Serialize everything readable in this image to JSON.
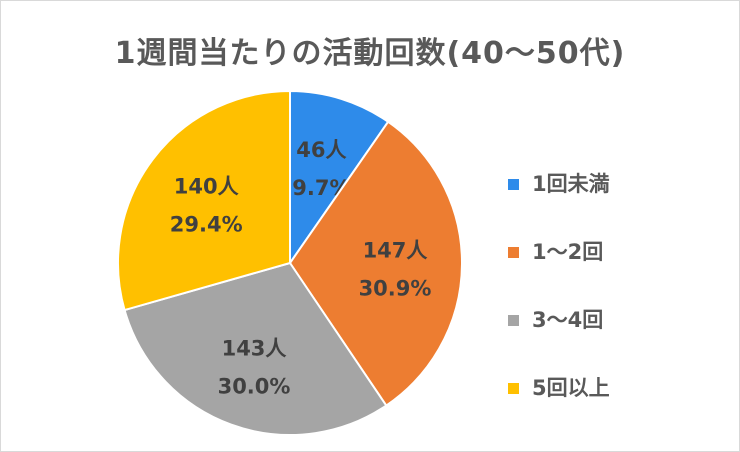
{
  "chart_data": {
    "type": "pie",
    "title": "1週間当たりの活動回数(40～50代)",
    "categories": [
      "1回未満",
      "1～2回",
      "3～4回",
      "5回以上"
    ],
    "values": [
      46,
      147,
      143,
      140
    ],
    "value_labels": [
      "46人",
      "147人",
      "143人",
      "140人"
    ],
    "percent_labels": [
      "9.7%",
      "30.9%",
      "30.0%",
      "29.4%"
    ],
    "colors": [
      "#2E8BEA",
      "#ED7D31",
      "#A5A5A5",
      "#FFC000"
    ],
    "legend_position": "right"
  }
}
